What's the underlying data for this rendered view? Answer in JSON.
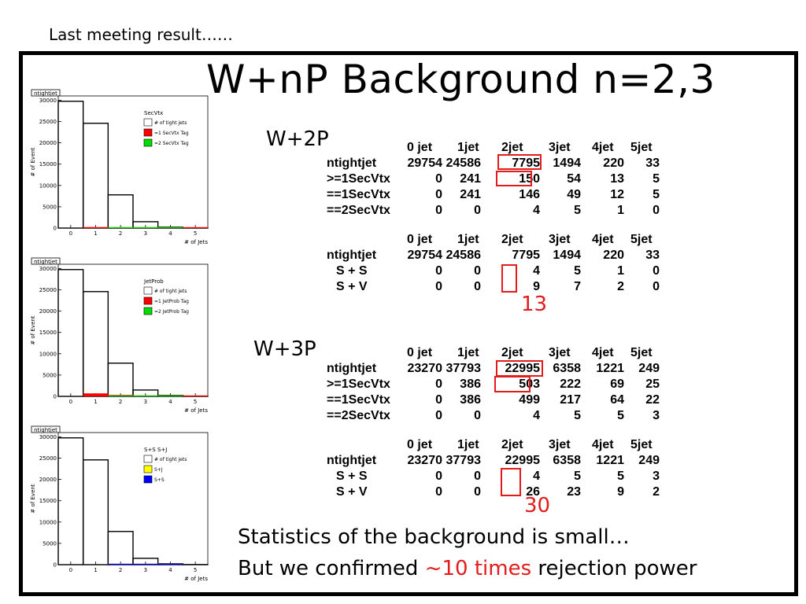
{
  "note": "Last meeting result……",
  "title": "W+nP Background n=2,3",
  "labels": {
    "w2p": "W+2P",
    "w3p": "W+3P"
  },
  "plots": [
    {
      "name": "ntightjet",
      "legend_title": "SecVtx",
      "legend": [
        "# of tight jets",
        "=1 SecVtx Tag",
        "=2 SecVtx Tag"
      ],
      "legend_colors": [
        "#ffffff",
        "#ff0000",
        "#00dd00"
      ]
    },
    {
      "name": "ntightjet",
      "legend_title": "JetProb",
      "legend": [
        "# of tight jets",
        "=1 JetProb Tag",
        "=2 JetProb Tag"
      ],
      "legend_colors": [
        "#ffffff",
        "#ff0000",
        "#00dd00"
      ]
    },
    {
      "name": "ntightjet",
      "legend_title": "S+S S+J",
      "legend": [
        "# of tight jets",
        "S+J",
        "S+S"
      ],
      "legend_colors": [
        "#ffffff",
        "#ffff00",
        "#0000ff"
      ]
    }
  ],
  "plot_axes": {
    "ylabel": "# of Event",
    "xlabel": "# of Jets",
    "yticks": [
      "30000",
      "25000",
      "20000",
      "15000",
      "10000",
      "5000",
      "0"
    ],
    "xticks": [
      "0",
      "1",
      "2",
      "3",
      "4",
      "5"
    ]
  },
  "chart_data": [
    {
      "type": "bar",
      "title": "ntightjet",
      "xlabel": "# of Jets",
      "ylabel": "# of Event",
      "ylim": [
        0,
        31000
      ],
      "categories": [
        "0",
        "1",
        "2",
        "3",
        "4",
        "5"
      ],
      "series": [
        {
          "name": "# of tight jets",
          "values": [
            29754,
            24586,
            7795,
            1494,
            220,
            33
          ]
        },
        {
          "name": "=1 SecVtx Tag",
          "values": [
            0,
            241,
            146,
            49,
            12,
            5
          ]
        },
        {
          "name": "=2 SecVtx Tag",
          "values": [
            0,
            0,
            4,
            5,
            1,
            0
          ]
        }
      ]
    },
    {
      "type": "bar",
      "title": "ntightjet",
      "xlabel": "# of Jets",
      "ylabel": "# of Event",
      "ylim": [
        0,
        31000
      ],
      "categories": [
        "0",
        "1",
        "2",
        "3",
        "4",
        "5"
      ],
      "series": [
        {
          "name": "# of tight jets",
          "values": [
            29754,
            24586,
            7795,
            1494,
            220,
            33
          ]
        },
        {
          "name": "=1 JetProb Tag",
          "values": [
            0,
            700,
            350,
            100,
            20,
            5
          ]
        },
        {
          "name": "=2 JetProb Tag",
          "values": [
            0,
            0,
            20,
            10,
            2,
            0
          ]
        }
      ]
    },
    {
      "type": "bar",
      "title": "ntightjet",
      "xlabel": "# of Jets",
      "ylabel": "# of Event",
      "ylim": [
        0,
        31000
      ],
      "categories": [
        "0",
        "1",
        "2",
        "3",
        "4",
        "5"
      ],
      "series": [
        {
          "name": "# of tight jets",
          "values": [
            29754,
            24586,
            7795,
            1494,
            220,
            33
          ]
        },
        {
          "name": "S+J",
          "values": [
            0,
            0,
            9,
            7,
            2,
            0
          ]
        },
        {
          "name": "S+S",
          "values": [
            0,
            0,
            4,
            5,
            1,
            0
          ]
        }
      ]
    }
  ],
  "tables": {
    "t1": {
      "headers": [
        "0 jet",
        "1jet",
        "2jet",
        "3jet",
        "4jet",
        "5jet"
      ],
      "rows": [
        {
          "label": "ntightjet",
          "values": [
            "29754",
            "24586",
            "7795",
            "1494",
            "220",
            "33"
          ]
        },
        {
          "label": ">=1SecVtx",
          "values": [
            "0",
            "241",
            "150",
            "54",
            "13",
            "5"
          ]
        },
        {
          "label": "==1SecVtx",
          "values": [
            "0",
            "241",
            "146",
            "49",
            "12",
            "5"
          ]
        },
        {
          "label": "==2SecVtx",
          "values": [
            "0",
            "0",
            "4",
            "5",
            "1",
            "0"
          ]
        }
      ]
    },
    "t2": {
      "headers": [
        "0 jet",
        "1jet",
        "2jet",
        "3jet",
        "4jet",
        "5jet"
      ],
      "rows": [
        {
          "label": "ntightjet",
          "values": [
            "29754",
            "24586",
            "7795",
            "1494",
            "220",
            "33"
          ]
        },
        {
          "label": "S + S",
          "values": [
            "0",
            "0",
            "4",
            "5",
            "1",
            "0"
          ]
        },
        {
          "label": "S  + V",
          "values": [
            "0",
            "0",
            "9",
            "7",
            "2",
            "0"
          ]
        }
      ]
    },
    "t3": {
      "headers": [
        "0 jet",
        "1jet",
        "2jet",
        "3jet",
        "4jet",
        "5jet"
      ],
      "rows": [
        {
          "label": "ntightjet",
          "values": [
            "23270",
            "37793",
            "22995",
            "6358",
            "1221",
            "249"
          ]
        },
        {
          "label": ">=1SecVtx",
          "values": [
            "0",
            "386",
            "503",
            "222",
            "69",
            "25"
          ]
        },
        {
          "label": "==1SecVtx",
          "values": [
            "0",
            "386",
            "499",
            "217",
            "64",
            "22"
          ]
        },
        {
          "label": "==2SecVtx",
          "values": [
            "0",
            "0",
            "4",
            "5",
            "5",
            "3"
          ]
        }
      ]
    },
    "t4": {
      "headers": [
        "0 jet",
        "1jet",
        "2jet",
        "3jet",
        "4jet",
        "5jet"
      ],
      "rows": [
        {
          "label": "ntightjet",
          "values": [
            "23270",
            "37793",
            "22995",
            "6358",
            "1221",
            "249"
          ]
        },
        {
          "label": "S + S",
          "values": [
            "0",
            "0",
            "4",
            "5",
            "5",
            "3"
          ]
        },
        {
          "label": "S  + V",
          "values": [
            "0",
            "0",
            "26",
            "23",
            "9",
            "2"
          ]
        }
      ]
    }
  },
  "sums": {
    "w2p": "13",
    "w3p": "30"
  },
  "footer": {
    "line1": "Statistics of the background is small…",
    "line2_pre": "But we confirmed ",
    "line2_red": "~10 times",
    "line2_post": " rejection power"
  },
  "colors": {
    "accent_red": "#e31b1b",
    "frame": "#000000"
  }
}
